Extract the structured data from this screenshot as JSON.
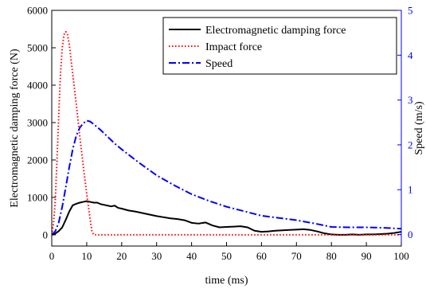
{
  "chart_data": {
    "type": "line",
    "xlabel": "time (ms)",
    "ylabel": "Electromagnetic damping force (N)",
    "y2label": "Speed (m/s)",
    "xlim": [
      0,
      100
    ],
    "ylim": [
      -300,
      6000
    ],
    "y2lim": [
      -0.2564,
      5
    ],
    "xticks": [
      0,
      10,
      20,
      30,
      40,
      50,
      60,
      70,
      80,
      90,
      100
    ],
    "yticks": [
      0,
      1000,
      2000,
      3000,
      4000,
      5000,
      6000
    ],
    "y2ticks": [
      0,
      1,
      2,
      3,
      4,
      5
    ],
    "grid": false,
    "legend_position": "top-right",
    "colors": {
      "left_axis": "#000000",
      "right_axis": "#0000ff"
    },
    "series": [
      {
        "name": "Electromagnetic damping force",
        "axis": "left",
        "color": "#000000",
        "style": "solid",
        "x": [
          0,
          1,
          2,
          3,
          4,
          5,
          6,
          7,
          8,
          9,
          10,
          11,
          12,
          13,
          14,
          15,
          16,
          17,
          18,
          19,
          20,
          22,
          24,
          26,
          28,
          30,
          32,
          34,
          36,
          38,
          40,
          42,
          44,
          46,
          48,
          50,
          52,
          54,
          56,
          58,
          60,
          62,
          64,
          66,
          68,
          70,
          72,
          74,
          76,
          78,
          80,
          82,
          84,
          86,
          88,
          90,
          92,
          94,
          96,
          98,
          100
        ],
        "y": [
          0,
          30,
          100,
          200,
          400,
          620,
          790,
          830,
          860,
          880,
          900,
          880,
          860,
          860,
          820,
          800,
          780,
          760,
          780,
          720,
          700,
          650,
          620,
          580,
          540,
          500,
          470,
          440,
          420,
          390,
          320,
          300,
          330,
          250,
          200,
          210,
          220,
          230,
          200,
          110,
          80,
          90,
          110,
          120,
          130,
          140,
          150,
          130,
          90,
          40,
          10,
          0,
          0,
          10,
          0,
          10,
          10,
          20,
          30,
          50,
          80
        ]
      },
      {
        "name": "Impact force",
        "axis": "left",
        "color": "#ff0000",
        "style": "dotted",
        "x": [
          0,
          0.5,
          1,
          1.5,
          2,
          2.5,
          3,
          3.5,
          4,
          4.5,
          5,
          5.5,
          6,
          7,
          8,
          9,
          10,
          11,
          11.5,
          12,
          20,
          40,
          60,
          80,
          100
        ],
        "y": [
          0,
          300,
          900,
          2000,
          3200,
          4300,
          5000,
          5350,
          5430,
          5350,
          5100,
          4700,
          4300,
          3500,
          2650,
          1850,
          1100,
          400,
          100,
          0,
          0,
          0,
          0,
          0,
          0
        ]
      },
      {
        "name": "Speed",
        "axis": "right",
        "color": "#0000ff",
        "style": "dashdot",
        "x": [
          0,
          1,
          2,
          3,
          4,
          5,
          6,
          7,
          8,
          9,
          10,
          11,
          12,
          14,
          16,
          18,
          20,
          25,
          30,
          35,
          40,
          45,
          50,
          55,
          60,
          65,
          70,
          75,
          80,
          85,
          90,
          95,
          100
        ],
        "y": [
          0,
          0.07,
          0.27,
          0.62,
          1.05,
          1.5,
          1.9,
          2.2,
          2.38,
          2.48,
          2.54,
          2.52,
          2.46,
          2.33,
          2.18,
          2.03,
          1.9,
          1.6,
          1.32,
          1.1,
          0.9,
          0.75,
          0.62,
          0.52,
          0.42,
          0.37,
          0.32,
          0.25,
          0.17,
          0.16,
          0.16,
          0.15,
          0.13
        ]
      }
    ]
  }
}
